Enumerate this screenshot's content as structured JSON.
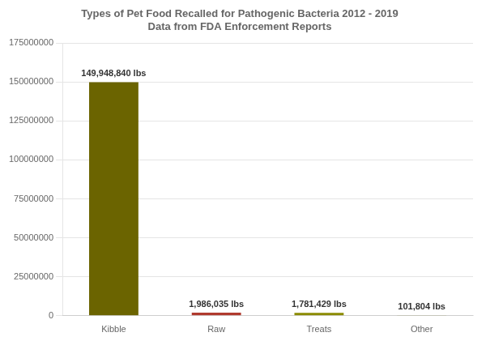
{
  "chart_data": {
    "type": "bar",
    "title": "Types of Pet Food Recalled for Pathogenic Bacteria 2012 - 2019",
    "subtitle": "Data from FDA Enforcement Reports",
    "categories": [
      "Kibble",
      "Raw",
      "Treats",
      "Other"
    ],
    "values": [
      149948840,
      1986035,
      1781429,
      101804
    ],
    "value_labels": [
      "149,948,840 lbs",
      "1,986,035 lbs",
      "1,781,429 lbs",
      "101,804 lbs"
    ],
    "data_labels": true,
    "colors": [
      "#6b6400",
      "#b03a2e",
      "#8b8b00",
      "#999966"
    ],
    "ylim": [
      0,
      175000000
    ],
    "yticks": [
      0,
      25000000,
      50000000,
      75000000,
      100000000,
      125000000,
      150000000,
      175000000
    ],
    "grid": true
  }
}
